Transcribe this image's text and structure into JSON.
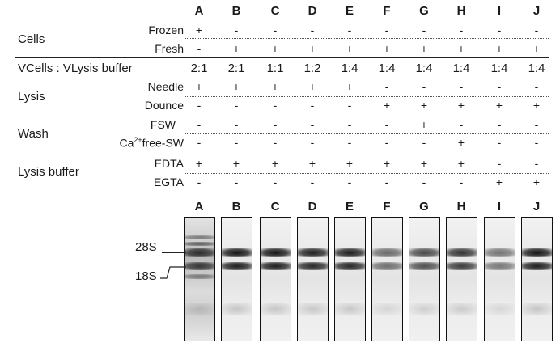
{
  "columns": [
    "A",
    "B",
    "C",
    "D",
    "E",
    "F",
    "G",
    "H",
    "I",
    "J"
  ],
  "rows": {
    "cells": {
      "label": "Cells",
      "frozen": {
        "label": "Frozen",
        "values": [
          "+",
          "-",
          "-",
          "-",
          "-",
          "-",
          "-",
          "-",
          "-",
          "-"
        ]
      },
      "fresh": {
        "label": "Fresh",
        "values": [
          "-",
          "+",
          "+",
          "+",
          "+",
          "+",
          "+",
          "+",
          "+",
          "+"
        ]
      }
    },
    "ratio": {
      "label": "VCells : VLysis buffer",
      "values": [
        "2:1",
        "2:1",
        "1:1",
        "1:2",
        "1:4",
        "1:4",
        "1:4",
        "1:4",
        "1:4",
        "1:4"
      ]
    },
    "lysis": {
      "label": "Lysis",
      "needle": {
        "label": "Needle",
        "values": [
          "+",
          "+",
          "+",
          "+",
          "+",
          "-",
          "-",
          "-",
          "-",
          "-"
        ]
      },
      "dounce": {
        "label": "Dounce",
        "values": [
          "-",
          "-",
          "-",
          "-",
          "-",
          "+",
          "+",
          "+",
          "+",
          "+"
        ]
      }
    },
    "wash": {
      "label": "Wash",
      "fsw": {
        "label": "FSW",
        "values": [
          "-",
          "-",
          "-",
          "-",
          "-",
          "-",
          "+",
          "-",
          "-",
          "-"
        ]
      },
      "ca": {
        "label_prefix": "Ca",
        "label_sup": "2+",
        "label_suffix": "free-SW",
        "values": [
          "-",
          "-",
          "-",
          "-",
          "-",
          "-",
          "-",
          "+",
          "-",
          "-"
        ]
      }
    },
    "buffer": {
      "label": "Lysis buffer",
      "edta": {
        "label": "EDTA",
        "values": [
          "+",
          "+",
          "+",
          "+",
          "+",
          "+",
          "+",
          "+",
          "-",
          "-"
        ]
      },
      "egta": {
        "label": "EGTA",
        "values": [
          "-",
          "-",
          "-",
          "-",
          "-",
          "-",
          "-",
          "-",
          "+",
          "+"
        ]
      }
    }
  },
  "gel": {
    "markers": {
      "m28s": "28S",
      "m18s": "18S"
    },
    "lanes": [
      {
        "id": "A",
        "intensity": 0.85,
        "smear": true
      },
      {
        "id": "B",
        "intensity": 1.0,
        "smear": false
      },
      {
        "id": "C",
        "intensity": 1.0,
        "smear": false
      },
      {
        "id": "D",
        "intensity": 0.95,
        "smear": false
      },
      {
        "id": "E",
        "intensity": 0.95,
        "smear": false
      },
      {
        "id": "F",
        "intensity": 0.6,
        "smear": false
      },
      {
        "id": "G",
        "intensity": 0.75,
        "smear": false
      },
      {
        "id": "H",
        "intensity": 0.85,
        "smear": false
      },
      {
        "id": "I",
        "intensity": 0.55,
        "smear": false
      },
      {
        "id": "J",
        "intensity": 1.0,
        "smear": false
      }
    ]
  },
  "colors": {
    "ink": "#1a1a1a",
    "gel_bg": "#f0f0f0",
    "band": "#1f1f1f"
  }
}
